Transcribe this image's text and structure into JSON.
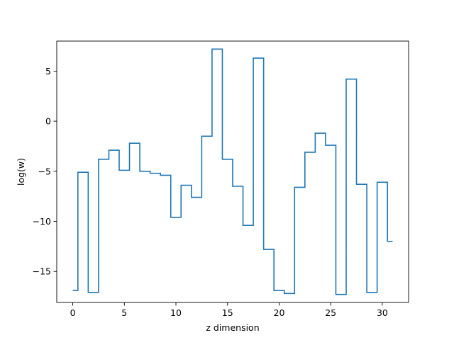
{
  "chart_data": {
    "type": "line",
    "drawstyle": "steps-mid",
    "xlabel": "z dimension",
    "ylabel": "log(w)",
    "xlim": [
      -1.55,
      32.55
    ],
    "ylim": [
      -18.1,
      8.0
    ],
    "xticks": [
      0,
      5,
      10,
      15,
      20,
      25,
      30
    ],
    "yticks": [
      -15,
      -10,
      -5,
      0,
      5
    ],
    "xtick_labels": [
      "0",
      "5",
      "10",
      "15",
      "20",
      "25",
      "30"
    ],
    "ytick_labels": [
      "−15",
      "−10",
      "−5",
      "0",
      "5"
    ],
    "grid": false,
    "series_color": "#1f77b4",
    "x": [
      0,
      1,
      2,
      3,
      4,
      5,
      6,
      7,
      8,
      9,
      10,
      11,
      12,
      13,
      14,
      15,
      16,
      17,
      18,
      19,
      20,
      21,
      22,
      23,
      24,
      25,
      26,
      27,
      28,
      29,
      30,
      31
    ],
    "y": [
      -16.9,
      -5.1,
      -17.1,
      -3.8,
      -2.9,
      -4.9,
      -2.2,
      -5.0,
      -5.2,
      -5.4,
      -9.6,
      -6.4,
      -7.6,
      -1.5,
      7.2,
      -3.8,
      -6.5,
      -10.4,
      6.3,
      -12.8,
      -16.9,
      -17.2,
      -6.6,
      -3.1,
      -1.2,
      -2.4,
      -17.3,
      4.2,
      -6.3,
      -17.1,
      -6.1,
      -12.0
    ]
  }
}
